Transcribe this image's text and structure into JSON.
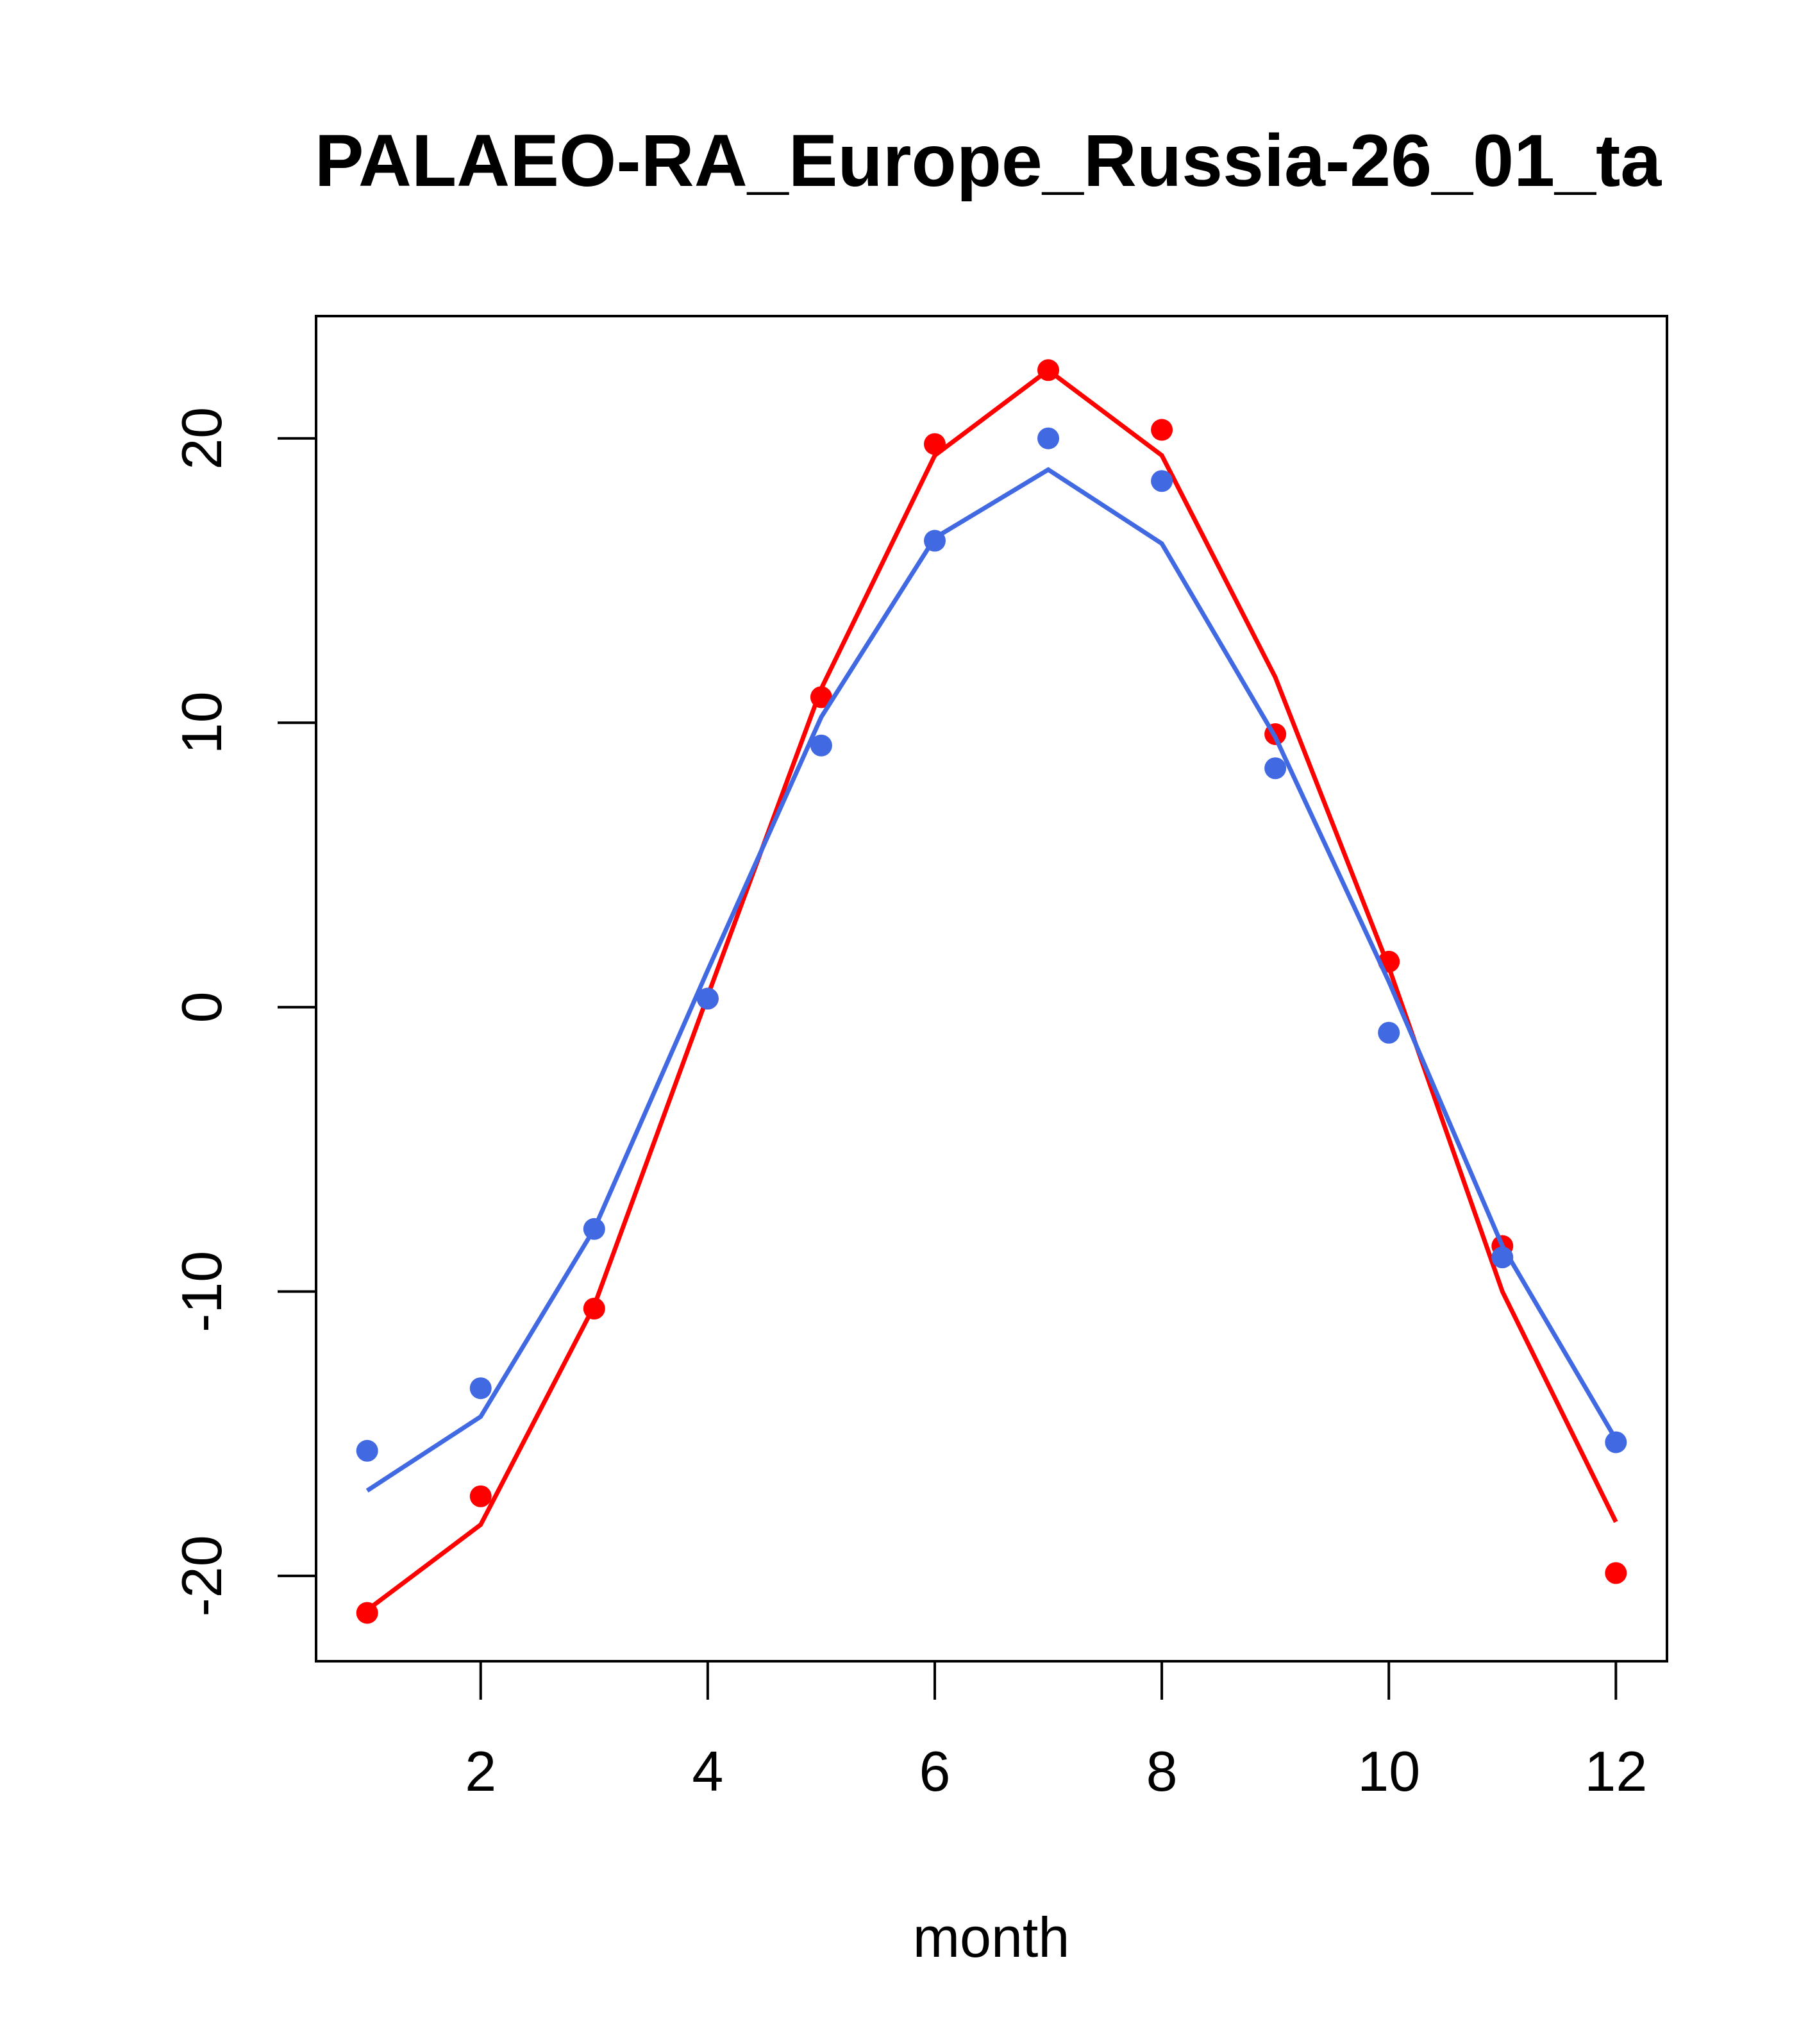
{
  "chart_data": {
    "type": "line",
    "title": "PALAEO-RA_Europe_Russia-26_01_ta",
    "xlabel": "month",
    "ylabel": "",
    "x": [
      1,
      2,
      3,
      4,
      5,
      6,
      7,
      8,
      9,
      10,
      11,
      12
    ],
    "xlim": [
      0.55,
      12.45
    ],
    "ylim": [
      -23,
      24.3
    ],
    "xticks": [
      2,
      4,
      6,
      8,
      10,
      12
    ],
    "yticks": [
      -20,
      -10,
      0,
      10,
      20
    ],
    "grid": false,
    "legend": "none",
    "series": [
      {
        "color": "#ff0000",
        "line": [
          -21.2,
          -18.2,
          -10.5,
          0.4,
          11.2,
          19.4,
          22.4,
          19.4,
          11.6,
          1.4,
          -10.0,
          -18.1
        ],
        "points": [
          -21.3,
          -17.2,
          -10.6,
          0.3,
          10.9,
          19.8,
          22.4,
          20.3,
          9.6,
          1.6,
          -8.4,
          -19.9
        ]
      },
      {
        "color": "#4169e1",
        "line": [
          -17.0,
          -14.4,
          -7.8,
          1.3,
          10.2,
          16.5,
          18.9,
          16.3,
          9.5,
          0.9,
          -8.4,
          -15.2
        ],
        "points": [
          -15.6,
          -13.4,
          -7.8,
          0.3,
          9.2,
          16.4,
          20.0,
          18.5,
          8.4,
          -0.9,
          -8.8,
          -15.3
        ]
      }
    ]
  }
}
